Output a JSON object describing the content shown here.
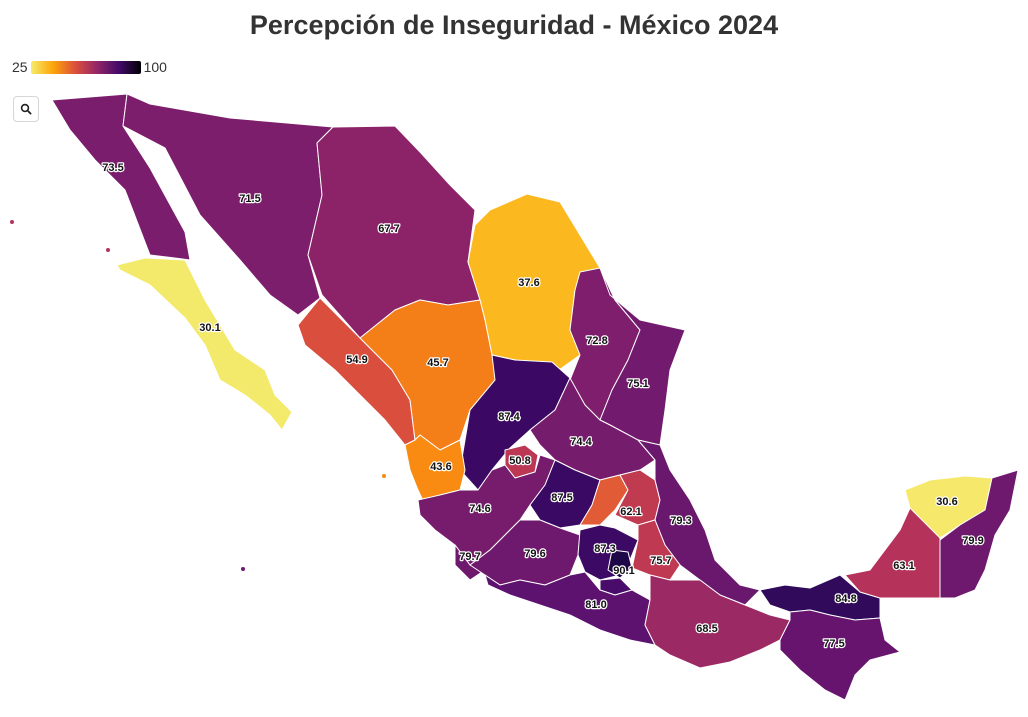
{
  "title": "Percepción de Inseguridad - México 2024",
  "legend": {
    "min_label": "25",
    "max_label": "100",
    "colors": [
      "#f6ec6a",
      "#fca50a",
      "#dd513a",
      "#932667",
      "#420a68",
      "#000004"
    ]
  },
  "toolbar": {
    "search_icon": "search-icon"
  },
  "map": {
    "values": {
      "baja_california": "73.5",
      "sonora": "71.5",
      "chihuahua": "67.7",
      "coahuila": "37.6",
      "baja_california_sur": "30.1",
      "sinaloa": "54.9",
      "durango": "45.7",
      "nuevo_leon": "72.8",
      "tamaulipas": "75.1",
      "zacatecas": "87.4",
      "san_luis_potosi": "74.4",
      "nayarit": "43.6",
      "aguascalientes": "50.8",
      "jalisco": "74.6",
      "guanajuato": "87.5",
      "queretaro": "62.1",
      "hidalgo": "79.3",
      "colima": "79.7",
      "michoacan": "79.6",
      "estado_de_mexico": "87.3",
      "cdmx": "90.1",
      "tlaxcala": "75.7",
      "guerrero": "81.0",
      "oaxaca": "68.5",
      "chiapas": "77.5",
      "tabasco": "84.8",
      "campeche": "63.1",
      "yucatan": "30.6",
      "quintana_roo": "79.9"
    }
  }
}
